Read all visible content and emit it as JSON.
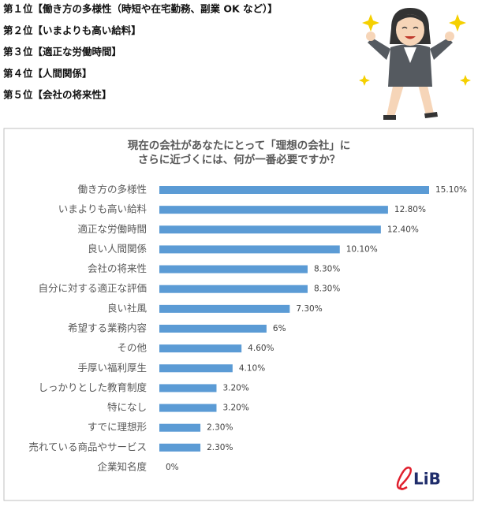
{
  "ranking": [
    "第１位【働き方の多様性（時短や在宅勤務、副業 OK など）】",
    "第２位【いまよりも高い給料】",
    "第３位【適正な労働時間】",
    "第４位【人間関係】",
    "第５位【会社の将来性】"
  ],
  "chart_data": {
    "type": "bar",
    "orientation": "horizontal",
    "title": [
      "現在の会社があなたにとって「理想の会社」に",
      "さらに近づくには、何が一番必要ですか？"
    ],
    "categories": [
      "働き方の多様性",
      "いまよりも高い給料",
      "適正な労働時間",
      "良い人間関係",
      "会社の将来性",
      "自分に対する適正な評価",
      "良い社風",
      "希望する業務内容",
      "その他",
      "手厚い福利厚生",
      "しっかりとした教育制度",
      "特になし",
      "すでに理想形",
      "売れている商品やサービス",
      "企業知名度"
    ],
    "values": [
      15.1,
      12.8,
      12.4,
      10.1,
      8.3,
      8.3,
      7.3,
      6,
      4.6,
      4.1,
      3.2,
      3.2,
      2.3,
      2.3,
      0
    ],
    "value_labels": [
      "15.10%",
      "12.80%",
      "12.40%",
      "10.10%",
      "8.30%",
      "8.30%",
      "7.30%",
      "6%",
      "4.60%",
      "4.10%",
      "3.20%",
      "3.20%",
      "2.30%",
      "2.30%",
      "0%"
    ],
    "color": "#5b9bd5"
  },
  "logo": "LiB"
}
